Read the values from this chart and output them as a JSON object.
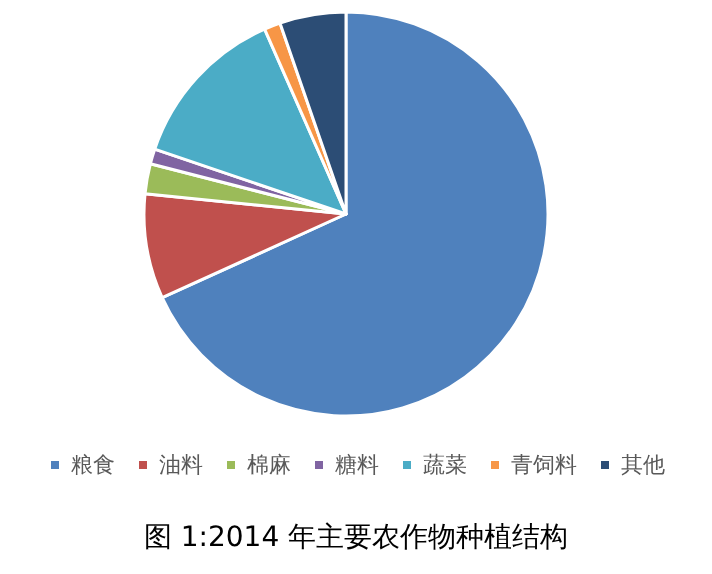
{
  "chart_data": {
    "type": "pie",
    "title": "图 1:2014 年主要农作物种植结构",
    "categories": [
      "粮食",
      "油料",
      "棉麻",
      "糖料",
      "蔬菜",
      "青饲料",
      "其他"
    ],
    "values": [
      68.2,
      8.4,
      2.4,
      1.2,
      13.2,
      1.3,
      5.3
    ],
    "colors": [
      "#4f81bd",
      "#c0504d",
      "#9bbb59",
      "#8064a2",
      "#4bacc6",
      "#f79646",
      "#2c4d75"
    ],
    "legend": "bottom"
  }
}
